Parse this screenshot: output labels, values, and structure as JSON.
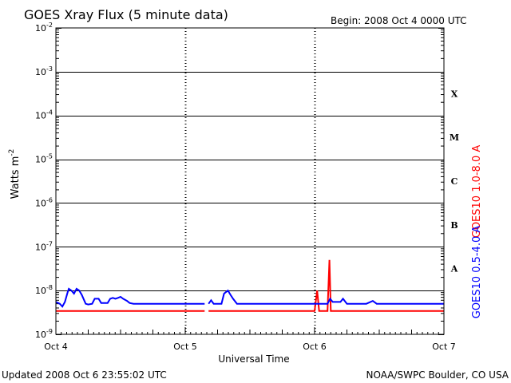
{
  "chart_data": {
    "type": "line",
    "title": "GOES Xray Flux (5 minute data)",
    "begin_label": "Begin:  2008 Oct 4 0000 UTC",
    "ylabel": "Watts m",
    "ylabel_sup": "-2",
    "xlabel": "Universal Time",
    "footer_left": "Updated 2008 Oct  6 23:55:02 UTC",
    "footer_right": "NOAA/SWPC Boulder, CO USA",
    "y_scale": "log",
    "ylim": [
      1e-09,
      0.01
    ],
    "y_ticks": [
      {
        "base": "10",
        "exp": "-2"
      },
      {
        "base": "10",
        "exp": "-3"
      },
      {
        "base": "10",
        "exp": "-4"
      },
      {
        "base": "10",
        "exp": "-5"
      },
      {
        "base": "10",
        "exp": "-6"
      },
      {
        "base": "10",
        "exp": "-7"
      },
      {
        "base": "10",
        "exp": "-8"
      },
      {
        "base": "10",
        "exp": "-9"
      }
    ],
    "xlim_days": [
      0,
      3
    ],
    "x_ticks": [
      "Oct 4",
      "Oct 5",
      "Oct 6",
      "Oct 7"
    ],
    "flare_classes": [
      "X",
      "M",
      "C",
      "B",
      "A"
    ],
    "grid": "horizontal decades, dotted day separators",
    "series": [
      {
        "name": "GOES10 1.0-8.0 A",
        "color": "#ff0000",
        "points": [
          [
            0.0,
            3.4e-09
          ],
          [
            0.4,
            3.4e-09
          ],
          [
            0.8,
            3.4e-09
          ],
          [
            1.15,
            3.4e-09
          ],
          [
            1.17,
            null
          ],
          [
            1.18,
            3.4e-09
          ],
          [
            1.5,
            3.4e-09
          ],
          [
            1.9,
            3.4e-09
          ],
          [
            2.0,
            3.4e-09
          ],
          [
            2.02,
            1e-08
          ],
          [
            2.035,
            3.4e-09
          ],
          [
            2.1,
            3.4e-09
          ],
          [
            2.115,
            5e-08
          ],
          [
            2.125,
            3.4e-09
          ],
          [
            2.5,
            3.4e-09
          ],
          [
            3.0,
            3.4e-09
          ]
        ]
      },
      {
        "name": "GOES10 0.5-4.0 A",
        "color": "#0000ff",
        "points": [
          [
            0.0,
            5.5e-09
          ],
          [
            0.03,
            5e-09
          ],
          [
            0.05,
            4.3e-09
          ],
          [
            0.07,
            5.5e-09
          ],
          [
            0.09,
            9e-09
          ],
          [
            0.1,
            1.1e-08
          ],
          [
            0.12,
            1e-08
          ],
          [
            0.14,
            8.5e-09
          ],
          [
            0.16,
            1.1e-08
          ],
          [
            0.18,
            1e-08
          ],
          [
            0.2,
            8e-09
          ],
          [
            0.23,
            5e-09
          ],
          [
            0.25,
            4.8e-09
          ],
          [
            0.28,
            5e-09
          ],
          [
            0.3,
            6.5e-09
          ],
          [
            0.33,
            6.5e-09
          ],
          [
            0.35,
            5.2e-09
          ],
          [
            0.4,
            5.2e-09
          ],
          [
            0.42,
            6.5e-09
          ],
          [
            0.44,
            6.8e-09
          ],
          [
            0.46,
            6.5e-09
          ],
          [
            0.48,
            6.8e-09
          ],
          [
            0.5,
            7.2e-09
          ],
          [
            0.52,
            6.5e-09
          ],
          [
            0.55,
            5.8e-09
          ],
          [
            0.57,
            5.2e-09
          ],
          [
            0.6,
            5e-09
          ],
          [
            0.7,
            5e-09
          ],
          [
            0.8,
            5e-09
          ],
          [
            0.9,
            5e-09
          ],
          [
            1.0,
            5e-09
          ],
          [
            1.15,
            5e-09
          ],
          [
            1.17,
            null
          ],
          [
            1.18,
            5e-09
          ],
          [
            1.2,
            6e-09
          ],
          [
            1.22,
            5e-09
          ],
          [
            1.28,
            5e-09
          ],
          [
            1.3,
            8.5e-09
          ],
          [
            1.33,
            1e-08
          ],
          [
            1.35,
            8e-09
          ],
          [
            1.37,
            6.5e-09
          ],
          [
            1.4,
            5e-09
          ],
          [
            1.6,
            5e-09
          ],
          [
            1.8,
            5e-09
          ],
          [
            2.0,
            5e-09
          ],
          [
            2.1,
            5e-09
          ],
          [
            2.12,
            6.5e-09
          ],
          [
            2.14,
            5.5e-09
          ],
          [
            2.2,
            5.5e-09
          ],
          [
            2.22,
            6.5e-09
          ],
          [
            2.25,
            5e-09
          ],
          [
            2.4,
            5e-09
          ],
          [
            2.45,
            5.8e-09
          ],
          [
            2.48,
            5e-09
          ],
          [
            2.7,
            5e-09
          ],
          [
            3.0,
            5e-09
          ]
        ]
      }
    ]
  }
}
